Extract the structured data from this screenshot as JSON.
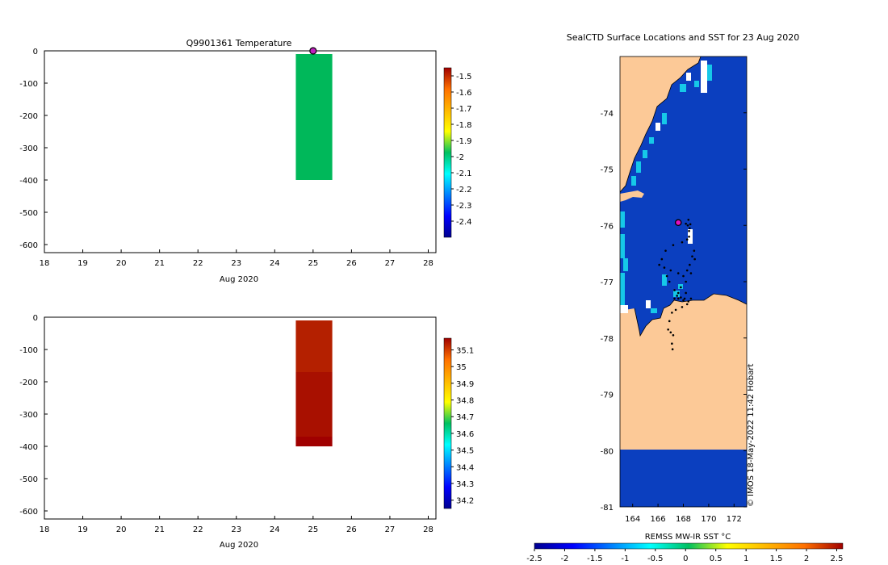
{
  "chart_data": [
    {
      "id": "temperature",
      "type": "heatmap",
      "title": "Q9901361  Temperature",
      "xlabel": "Aug 2020",
      "ylabel": "",
      "xlim": [
        18,
        28.2
      ],
      "ylim": [
        -625,
        0
      ],
      "xticks": [
        18,
        19,
        20,
        21,
        22,
        23,
        24,
        25,
        26,
        27,
        28
      ],
      "yticks": [
        0,
        -100,
        -200,
        -300,
        -400,
        -500,
        -600
      ],
      "cells": [
        {
          "x0": 24.55,
          "x1": 25.5,
          "y0": -10,
          "y1": -400,
          "value": -2.08,
          "color": "#00b85a"
        }
      ],
      "marker": {
        "x": 25.0,
        "y": 0,
        "color": "#c020c0"
      },
      "colorbar": {
        "min": -2.5,
        "max": -1.45,
        "ticks": [
          "-1.5",
          "-1.6",
          "-1.7",
          "-1.8",
          "-1.9",
          "-2",
          "-2.1",
          "-2.2",
          "-2.3",
          "-2.4"
        ],
        "tick_values": [
          -1.5,
          -1.6,
          -1.7,
          -1.8,
          -1.9,
          -2.0,
          -2.1,
          -2.2,
          -2.3,
          -2.4
        ]
      }
    },
    {
      "id": "salinity",
      "type": "heatmap",
      "title": "",
      "xlabel": "Aug 2020",
      "ylabel": "",
      "xlim": [
        18,
        28.2
      ],
      "ylim": [
        -625,
        0
      ],
      "xticks": [
        18,
        19,
        20,
        21,
        22,
        23,
        24,
        25,
        26,
        27,
        28
      ],
      "yticks": [
        0,
        -100,
        -200,
        -300,
        -400,
        -500,
        -600
      ],
      "cells": [
        {
          "x0": 24.55,
          "x1": 25.5,
          "y0": -10,
          "y1": -170,
          "value": 35.08,
          "color": "#b42000"
        },
        {
          "x0": 24.55,
          "x1": 25.5,
          "y0": -170,
          "y1": -370,
          "value": 35.12,
          "color": "#a81000"
        },
        {
          "x0": 24.55,
          "x1": 25.5,
          "y0": -370,
          "y1": -400,
          "value": 35.15,
          "color": "#a00000"
        }
      ],
      "colorbar": {
        "min": 34.15,
        "max": 35.17,
        "ticks": [
          "35.1",
          "35",
          "34.9",
          "34.8",
          "34.7",
          "34.6",
          "34.5",
          "34.4",
          "34.3",
          "34.2"
        ],
        "tick_values": [
          35.1,
          35.0,
          34.9,
          34.8,
          34.7,
          34.6,
          34.5,
          34.4,
          34.3,
          34.2
        ]
      }
    },
    {
      "id": "map",
      "type": "heatmap",
      "title": "SealCTD Surface Locations and SST for 23 Aug 2020",
      "xlim": [
        163.0,
        173.0
      ],
      "ylim": [
        -81.0,
        -73.0
      ],
      "xticks": [
        "164",
        "166",
        "168",
        "170",
        "172"
      ],
      "xtick_values": [
        164,
        166,
        168,
        170,
        172
      ],
      "yticks": [
        "-74",
        "-75",
        "-76",
        "-77",
        "-78",
        "-79",
        "-80",
        "-81"
      ],
      "ytick_values": [
        -74,
        -75,
        -76,
        -77,
        -78,
        -79,
        -80,
        -81
      ],
      "current_location": {
        "lon": 167.6,
        "lat": -75.95
      },
      "track": [
        [
          168.2,
          -75.97
        ],
        [
          168.35,
          -76.0
        ],
        [
          168.5,
          -76.05
        ],
        [
          168.45,
          -76.2
        ],
        [
          168.3,
          -76.25
        ],
        [
          167.9,
          -76.3
        ],
        [
          167.2,
          -76.35
        ],
        [
          166.6,
          -76.45
        ],
        [
          166.3,
          -76.6
        ],
        [
          166.1,
          -76.7
        ],
        [
          166.5,
          -76.75
        ],
        [
          167.0,
          -76.8
        ],
        [
          167.6,
          -76.85
        ],
        [
          168.0,
          -76.9
        ],
        [
          168.3,
          -76.8
        ],
        [
          168.5,
          -76.7
        ],
        [
          168.7,
          -76.55
        ],
        [
          168.85,
          -76.45
        ],
        [
          168.9,
          -76.6
        ],
        [
          168.6,
          -76.85
        ],
        [
          168.2,
          -77.0
        ],
        [
          167.8,
          -77.1
        ],
        [
          167.6,
          -77.2
        ],
        [
          167.3,
          -77.3
        ],
        [
          167.6,
          -77.3
        ],
        [
          168.0,
          -77.33
        ],
        [
          168.4,
          -77.35
        ],
        [
          168.6,
          -77.3
        ],
        [
          168.3,
          -77.4
        ],
        [
          167.9,
          -77.45
        ],
        [
          167.4,
          -77.5
        ],
        [
          167.1,
          -77.55
        ],
        [
          166.9,
          -77.7
        ],
        [
          166.8,
          -77.85
        ],
        [
          167.0,
          -77.9
        ],
        [
          167.2,
          -77.95
        ],
        [
          167.1,
          -78.1
        ],
        [
          167.15,
          -78.2
        ],
        [
          166.7,
          -76.9
        ],
        [
          166.9,
          -77.0
        ],
        [
          167.3,
          -77.15
        ],
        [
          167.5,
          -77.25
        ],
        [
          167.8,
          -77.28
        ],
        [
          168.1,
          -77.3
        ],
        [
          168.2,
          -77.2
        ],
        [
          168.45,
          -76.1
        ],
        [
          168.55,
          -75.98
        ],
        [
          168.4,
          -75.9
        ]
      ],
      "colorbar": {
        "label": "REMSS MW-IR SST °C",
        "min": -2.5,
        "max": 2.6,
        "ticks": [
          "-2.5",
          "-2",
          "-1.5",
          "-1",
          "-0.5",
          "0",
          "0.5",
          "1",
          "1.5",
          "2",
          "2.5"
        ],
        "tick_values": [
          -2.5,
          -2.0,
          -1.5,
          -1.0,
          -0.5,
          0,
          0.5,
          1.0,
          1.5,
          2.0,
          2.5
        ]
      },
      "colors": {
        "ocean": "#0b3fbf",
        "land": "#fcc997",
        "ice_cyan": "#16c8e8",
        "ice_white": "#ffffff"
      },
      "credit": "© IMOS 18-May-2022 11:42 Hobart"
    }
  ]
}
